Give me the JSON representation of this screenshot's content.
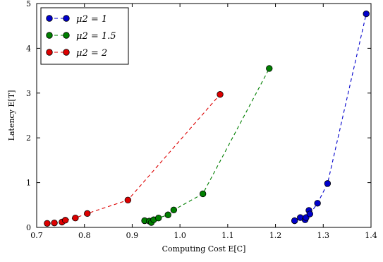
{
  "chart_data": {
    "type": "line",
    "xlabel": "Computing Cost E[C]",
    "ylabel": "Latency E[T]",
    "xlim": [
      0.7,
      1.4
    ],
    "ylim": [
      0,
      5
    ],
    "xticks": [
      "0.7",
      "0.8",
      "0.9",
      "1.0",
      "1.1",
      "1.2",
      "1.3",
      "1.4"
    ],
    "yticks": [
      "0",
      "1",
      "2",
      "3",
      "4",
      "5"
    ],
    "legend_position": "top-left",
    "grid": false,
    "series": [
      {
        "name": "μ2 = 1",
        "color": "#0000cc",
        "x": [
          1.24,
          1.252,
          1.262,
          1.264,
          1.27,
          1.272,
          1.288,
          1.309,
          1.39
        ],
        "y": [
          0.15,
          0.22,
          0.17,
          0.22,
          0.38,
          0.3,
          0.54,
          0.98,
          4.77
        ]
      },
      {
        "name": "μ2 = 1.5",
        "color": "#007f00",
        "x": [
          0.926,
          0.936,
          0.94,
          0.945,
          0.955,
          0.975,
          0.987,
          1.048,
          1.187
        ],
        "y": [
          0.15,
          0.14,
          0.11,
          0.17,
          0.21,
          0.28,
          0.39,
          0.75,
          3.55
        ]
      },
      {
        "name": "μ2 = 2",
        "color": "#dd0000",
        "x": [
          0.722,
          0.737,
          0.753,
          0.76,
          0.781,
          0.806,
          0.891,
          1.084
        ],
        "y": [
          0.09,
          0.1,
          0.12,
          0.16,
          0.21,
          0.31,
          0.61,
          2.97
        ]
      }
    ]
  }
}
